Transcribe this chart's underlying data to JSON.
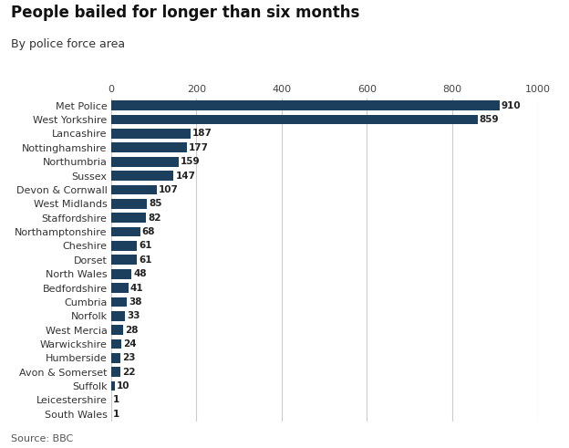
{
  "title": "People bailed for longer than six months",
  "subtitle": "By police force area",
  "source": "Source: BBC",
  "bar_color": "#1c3f5e",
  "categories": [
    "Met Police",
    "West Yorkshire",
    "Lancashire",
    "Nottinghamshire",
    "Northumbria",
    "Sussex",
    "Devon & Cornwall",
    "West Midlands",
    "Staffordshire",
    "Northamptonshire",
    "Cheshire",
    "Dorset",
    "North Wales",
    "Bedfordshire",
    "Cumbria",
    "Norfolk",
    "West Mercia",
    "Warwickshire",
    "Humberside",
    "Avon & Somerset",
    "Suffolk",
    "Leicestershire",
    "South Wales"
  ],
  "values": [
    910,
    859,
    187,
    177,
    159,
    147,
    107,
    85,
    82,
    68,
    61,
    61,
    48,
    41,
    38,
    33,
    28,
    24,
    23,
    22,
    10,
    1,
    1
  ],
  "xlim": [
    0,
    1000
  ],
  "xticks": [
    0,
    200,
    400,
    600,
    800,
    1000
  ],
  "label_fontsize": 7.5,
  "title_fontsize": 12,
  "subtitle_fontsize": 9,
  "source_fontsize": 8,
  "ytick_fontsize": 8,
  "xtick_fontsize": 8,
  "background_color": "#ffffff",
  "axes_background": "#ffffff",
  "grid_color": "#cccccc",
  "bar_height": 0.7
}
